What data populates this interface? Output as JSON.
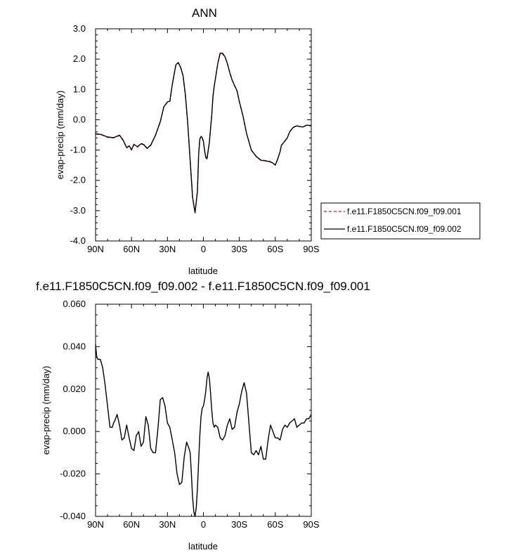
{
  "chart_data": [
    {
      "type": "line",
      "title": "ANN",
      "xlabel": "latitude",
      "ylabel": "evap-precip (mm/day)",
      "xlim": [
        90,
        -90
      ],
      "ylim": [
        -4.0,
        3.0
      ],
      "x_ticks": [
        90,
        60,
        30,
        0,
        -30,
        -60,
        -90
      ],
      "x_tick_labels": [
        "90N",
        "60N",
        "30N",
        "0",
        "30S",
        "60S",
        "90S"
      ],
      "y_ticks": [
        3.0,
        2.0,
        1.0,
        0.0,
        -1.0,
        -2.0,
        -3.0,
        -4.0
      ],
      "y_tick_labels": [
        "3.0",
        "2.0",
        "1.0",
        "0.0",
        "-1.0",
        "-2.0",
        "-3.0",
        "-4.0"
      ],
      "grid": false,
      "legend_position": "right",
      "x": [
        90,
        85,
        80,
        75,
        70,
        67,
        64,
        62,
        60,
        58,
        55,
        52,
        50,
        47,
        44,
        40,
        36,
        33,
        30,
        28,
        26,
        23,
        21,
        19,
        17,
        15,
        13,
        11,
        9,
        7,
        5,
        4,
        3,
        2,
        1,
        0,
        -1,
        -2,
        -3,
        -5,
        -7,
        -8,
        -9,
        -10,
        -12,
        -14,
        -16,
        -18,
        -20,
        -22,
        -24,
        -26,
        -28,
        -30,
        -33,
        -36,
        -40,
        -44,
        -48,
        -52,
        -55,
        -58,
        -60,
        -62,
        -64,
        -65,
        -67,
        -70,
        -72,
        -75,
        -78,
        -80,
        -83,
        -86,
        -90
      ],
      "series": [
        {
          "name": "f.e11.F1850C5CN.f09_f09.001",
          "color": "#e41a1c",
          "dash": "dashed",
          "values": [
            -0.47,
            -0.5,
            -0.58,
            -0.6,
            -0.52,
            -0.68,
            -0.93,
            -0.87,
            -1.0,
            -0.82,
            -0.9,
            -0.8,
            -0.82,
            -0.95,
            -0.85,
            -0.52,
            -0.08,
            0.42,
            0.58,
            0.6,
            1.15,
            1.8,
            1.88,
            1.72,
            1.45,
            0.8,
            -0.15,
            -1.35,
            -2.55,
            -3.05,
            -2.35,
            -1.15,
            -0.65,
            -0.56,
            -0.6,
            -0.72,
            -1.02,
            -1.25,
            -1.3,
            -0.75,
            0.15,
            0.75,
            1.1,
            1.35,
            1.85,
            2.18,
            2.17,
            2.07,
            1.85,
            1.55,
            1.3,
            1.12,
            0.95,
            0.58,
            0.12,
            -0.45,
            -1.0,
            -1.2,
            -1.33,
            -1.35,
            -1.37,
            -1.42,
            -1.5,
            -1.3,
            -1.05,
            -0.85,
            -0.75,
            -0.6,
            -0.4,
            -0.25,
            -0.2,
            -0.22,
            -0.24,
            -0.18,
            -0.2
          ]
        },
        {
          "name": "f.e11.F1850C5CN.f09_f09.002",
          "color": "#000000",
          "dash": "solid",
          "values": [
            -0.46,
            -0.49,
            -0.57,
            -0.59,
            -0.51,
            -0.67,
            -0.92,
            -0.86,
            -0.99,
            -0.81,
            -0.89,
            -0.79,
            -0.81,
            -0.94,
            -0.84,
            -0.51,
            -0.07,
            0.43,
            0.59,
            0.61,
            1.16,
            1.81,
            1.89,
            1.73,
            1.46,
            0.81,
            -0.15,
            -1.36,
            -2.56,
            -3.07,
            -2.37,
            -1.16,
            -0.64,
            -0.55,
            -0.59,
            -0.71,
            -1.01,
            -1.24,
            -1.29,
            -0.74,
            0.16,
            0.76,
            1.11,
            1.36,
            1.86,
            2.2,
            2.19,
            2.08,
            1.86,
            1.56,
            1.31,
            1.13,
            0.96,
            0.6,
            0.13,
            -0.45,
            -1.0,
            -1.21,
            -1.34,
            -1.36,
            -1.38,
            -1.43,
            -1.5,
            -1.3,
            -1.05,
            -0.85,
            -0.75,
            -0.6,
            -0.4,
            -0.25,
            -0.2,
            -0.22,
            -0.24,
            -0.18,
            -0.19
          ]
        }
      ]
    },
    {
      "type": "line",
      "title": "f.e11.F1850C5CN.f09_f09.002 - f.e11.F1850C5CN.f09_f09.001",
      "xlabel": "latitude",
      "ylabel": "evap-precip (mm/day)",
      "xlim": [
        90,
        -90
      ],
      "ylim": [
        -0.04,
        0.06
      ],
      "x_ticks": [
        90,
        60,
        30,
        0,
        -30,
        -60,
        -90
      ],
      "x_tick_labels": [
        "90N",
        "60N",
        "30N",
        "0",
        "30S",
        "60S",
        "90S"
      ],
      "y_ticks": [
        0.06,
        0.04,
        0.02,
        0.0,
        -0.02,
        -0.04
      ],
      "y_tick_labels": [
        "0.060",
        "0.040",
        "0.020",
        "0.000",
        "-0.020",
        "-0.040"
      ],
      "grid": false,
      "x": [
        90,
        89,
        88,
        86,
        84,
        82,
        80,
        78,
        76,
        75,
        74,
        72,
        70,
        68,
        66,
        64,
        62,
        60,
        58,
        56,
        54,
        52,
        50,
        48,
        46,
        44,
        42,
        40,
        38,
        36,
        34,
        32,
        30,
        28,
        26,
        24,
        22,
        20,
        18,
        16,
        14,
        12,
        11,
        10,
        9,
        8,
        7,
        6,
        5,
        4,
        3,
        2,
        1,
        0,
        -1,
        -2,
        -3,
        -4,
        -5,
        -6,
        -7,
        -8,
        -9,
        -10,
        -12,
        -14,
        -16,
        -18,
        -20,
        -22,
        -24,
        -26,
        -28,
        -30,
        -32,
        -34,
        -36,
        -38,
        -40,
        -42,
        -44,
        -46,
        -48,
        -50,
        -52,
        -54,
        -56,
        -58,
        -60,
        -62,
        -64,
        -66,
        -68,
        -70,
        -72,
        -74,
        -76,
        -78,
        -80,
        -82,
        -84,
        -86,
        -88,
        -90
      ],
      "series": [
        {
          "name": "",
          "color": "#000000",
          "dash": "solid",
          "values": [
            0.041,
            0.035,
            0.034,
            0.034,
            0.03,
            0.022,
            0.012,
            0.002,
            0.002,
            0.004,
            0.005,
            0.008,
            0.003,
            -0.004,
            -0.003,
            0.003,
            -0.003,
            -0.008,
            -0.009,
            -0.002,
            0.0,
            -0.007,
            -0.005,
            0.007,
            0.003,
            -0.008,
            -0.01,
            -0.01,
            0.001,
            0.015,
            0.016,
            0.012,
            0.004,
            0.002,
            -0.004,
            -0.01,
            -0.02,
            -0.025,
            -0.024,
            -0.012,
            -0.005,
            -0.008,
            -0.01,
            -0.02,
            -0.031,
            -0.038,
            -0.04,
            -0.036,
            -0.027,
            -0.014,
            -0.002,
            0.007,
            0.011,
            0.012,
            0.015,
            0.019,
            0.025,
            0.028,
            0.025,
            0.018,
            0.01,
            0.004,
            0.002,
            0.003,
            0.002,
            -0.003,
            -0.004,
            -0.002,
            0.003,
            0.006,
            0.001,
            0.002,
            0.009,
            0.013,
            0.019,
            0.023,
            0.018,
            0.004,
            -0.01,
            -0.011,
            -0.009,
            -0.011,
            -0.007,
            -0.013,
            -0.013,
            -0.004,
            0.003,
            0.0,
            -0.003,
            -0.003,
            -0.004,
            0.001,
            0.003,
            0.002,
            0.004,
            0.005,
            0.006,
            0.002,
            0.003,
            0.004,
            0.004,
            0.006,
            0.006,
            0.008
          ]
        }
      ]
    }
  ]
}
